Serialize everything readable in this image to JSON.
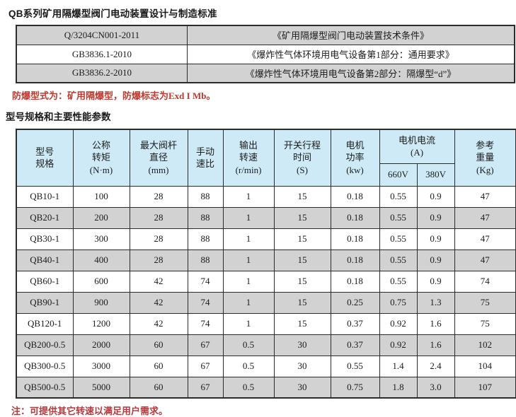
{
  "page": {
    "title": "QB系列矿用隔爆型阀门电动装置设计与制造标准",
    "explosion_proof_note": "防爆型式为：矿用隔爆型，防爆标志为Exd I  Mb。",
    "subtitle": "型号规格和主要性能参数",
    "footer_note": "注：可提供其它转速以满足用户需求。"
  },
  "colors": {
    "header_bg": "#cdeaf6",
    "row_alt_bg": "#d2d2d2",
    "border": "#2b2b2b",
    "note_red": "#c0392e",
    "footer_red": "#b23a3e"
  },
  "standards_table": {
    "rows": [
      {
        "code": "Q/3204CN001-2011",
        "name": "《矿用隔爆型阀门电动装置技术条件》"
      },
      {
        "code": "GB3836.1-2010",
        "name": "《爆炸性气体环境用电气设备第1部分：通用要求》"
      },
      {
        "code": "GB3836.2-2010",
        "name": "《爆炸性气体环境用电气设备第2部分：隔爆型“d”》"
      }
    ]
  },
  "spec_table": {
    "headers": {
      "model": "型号\n规格",
      "torque": "公称\n转矩\n(N·m)",
      "stem_diameter": "最大阀杆\n直径\n(mm)",
      "manual_ratio": "手动\n速比",
      "output_speed": "输出\n转速\n(r/min)",
      "stroke_time": "开关行程\n时间\n(S)",
      "motor_power": "电机\n功率\n(kw)",
      "motor_current": "电机电流\n(A)",
      "current_660": "660V",
      "current_380": "380V",
      "ref_weight": "参考\n重量\n(Kg)"
    },
    "rows": [
      [
        "QB10-1",
        "100",
        "28",
        "88",
        "1",
        "15",
        "0.18",
        "0.55",
        "0.9",
        "47"
      ],
      [
        "QB20-1",
        "200",
        "28",
        "88",
        "1",
        "15",
        "0.18",
        "0.55",
        "0.9",
        "47"
      ],
      [
        "QB30-1",
        "300",
        "28",
        "88",
        "1",
        "15",
        "0.18",
        "0.55",
        "0.9",
        "47"
      ],
      [
        "QB40-1",
        "400",
        "28",
        "88",
        "1",
        "15",
        "0.18",
        "0.55",
        "0.9",
        "47"
      ],
      [
        "QB60-1",
        "600",
        "42",
        "74",
        "1",
        "15",
        "0.18",
        "0.55",
        "0.9",
        "74"
      ],
      [
        "QB90-1",
        "900",
        "42",
        "74",
        "1",
        "15",
        "0.25",
        "0.75",
        "1.3",
        "75"
      ],
      [
        "QB120-1",
        "1200",
        "42",
        "74",
        "1",
        "15",
        "0.37",
        "0.92",
        "1.6",
        "75"
      ],
      [
        "QB200-0.5",
        "2000",
        "60",
        "67",
        "0.5",
        "30",
        "0.37",
        "0.92",
        "1.6",
        "102"
      ],
      [
        "QB300-0.5",
        "3000",
        "60",
        "67",
        "0.5",
        "30",
        "0.55",
        "1.4",
        "2.4",
        "104"
      ],
      [
        "QB500-0.5",
        "5000",
        "60",
        "67",
        "0.5",
        "30",
        "0.75",
        "1.8",
        "3.0",
        "107"
      ]
    ]
  }
}
